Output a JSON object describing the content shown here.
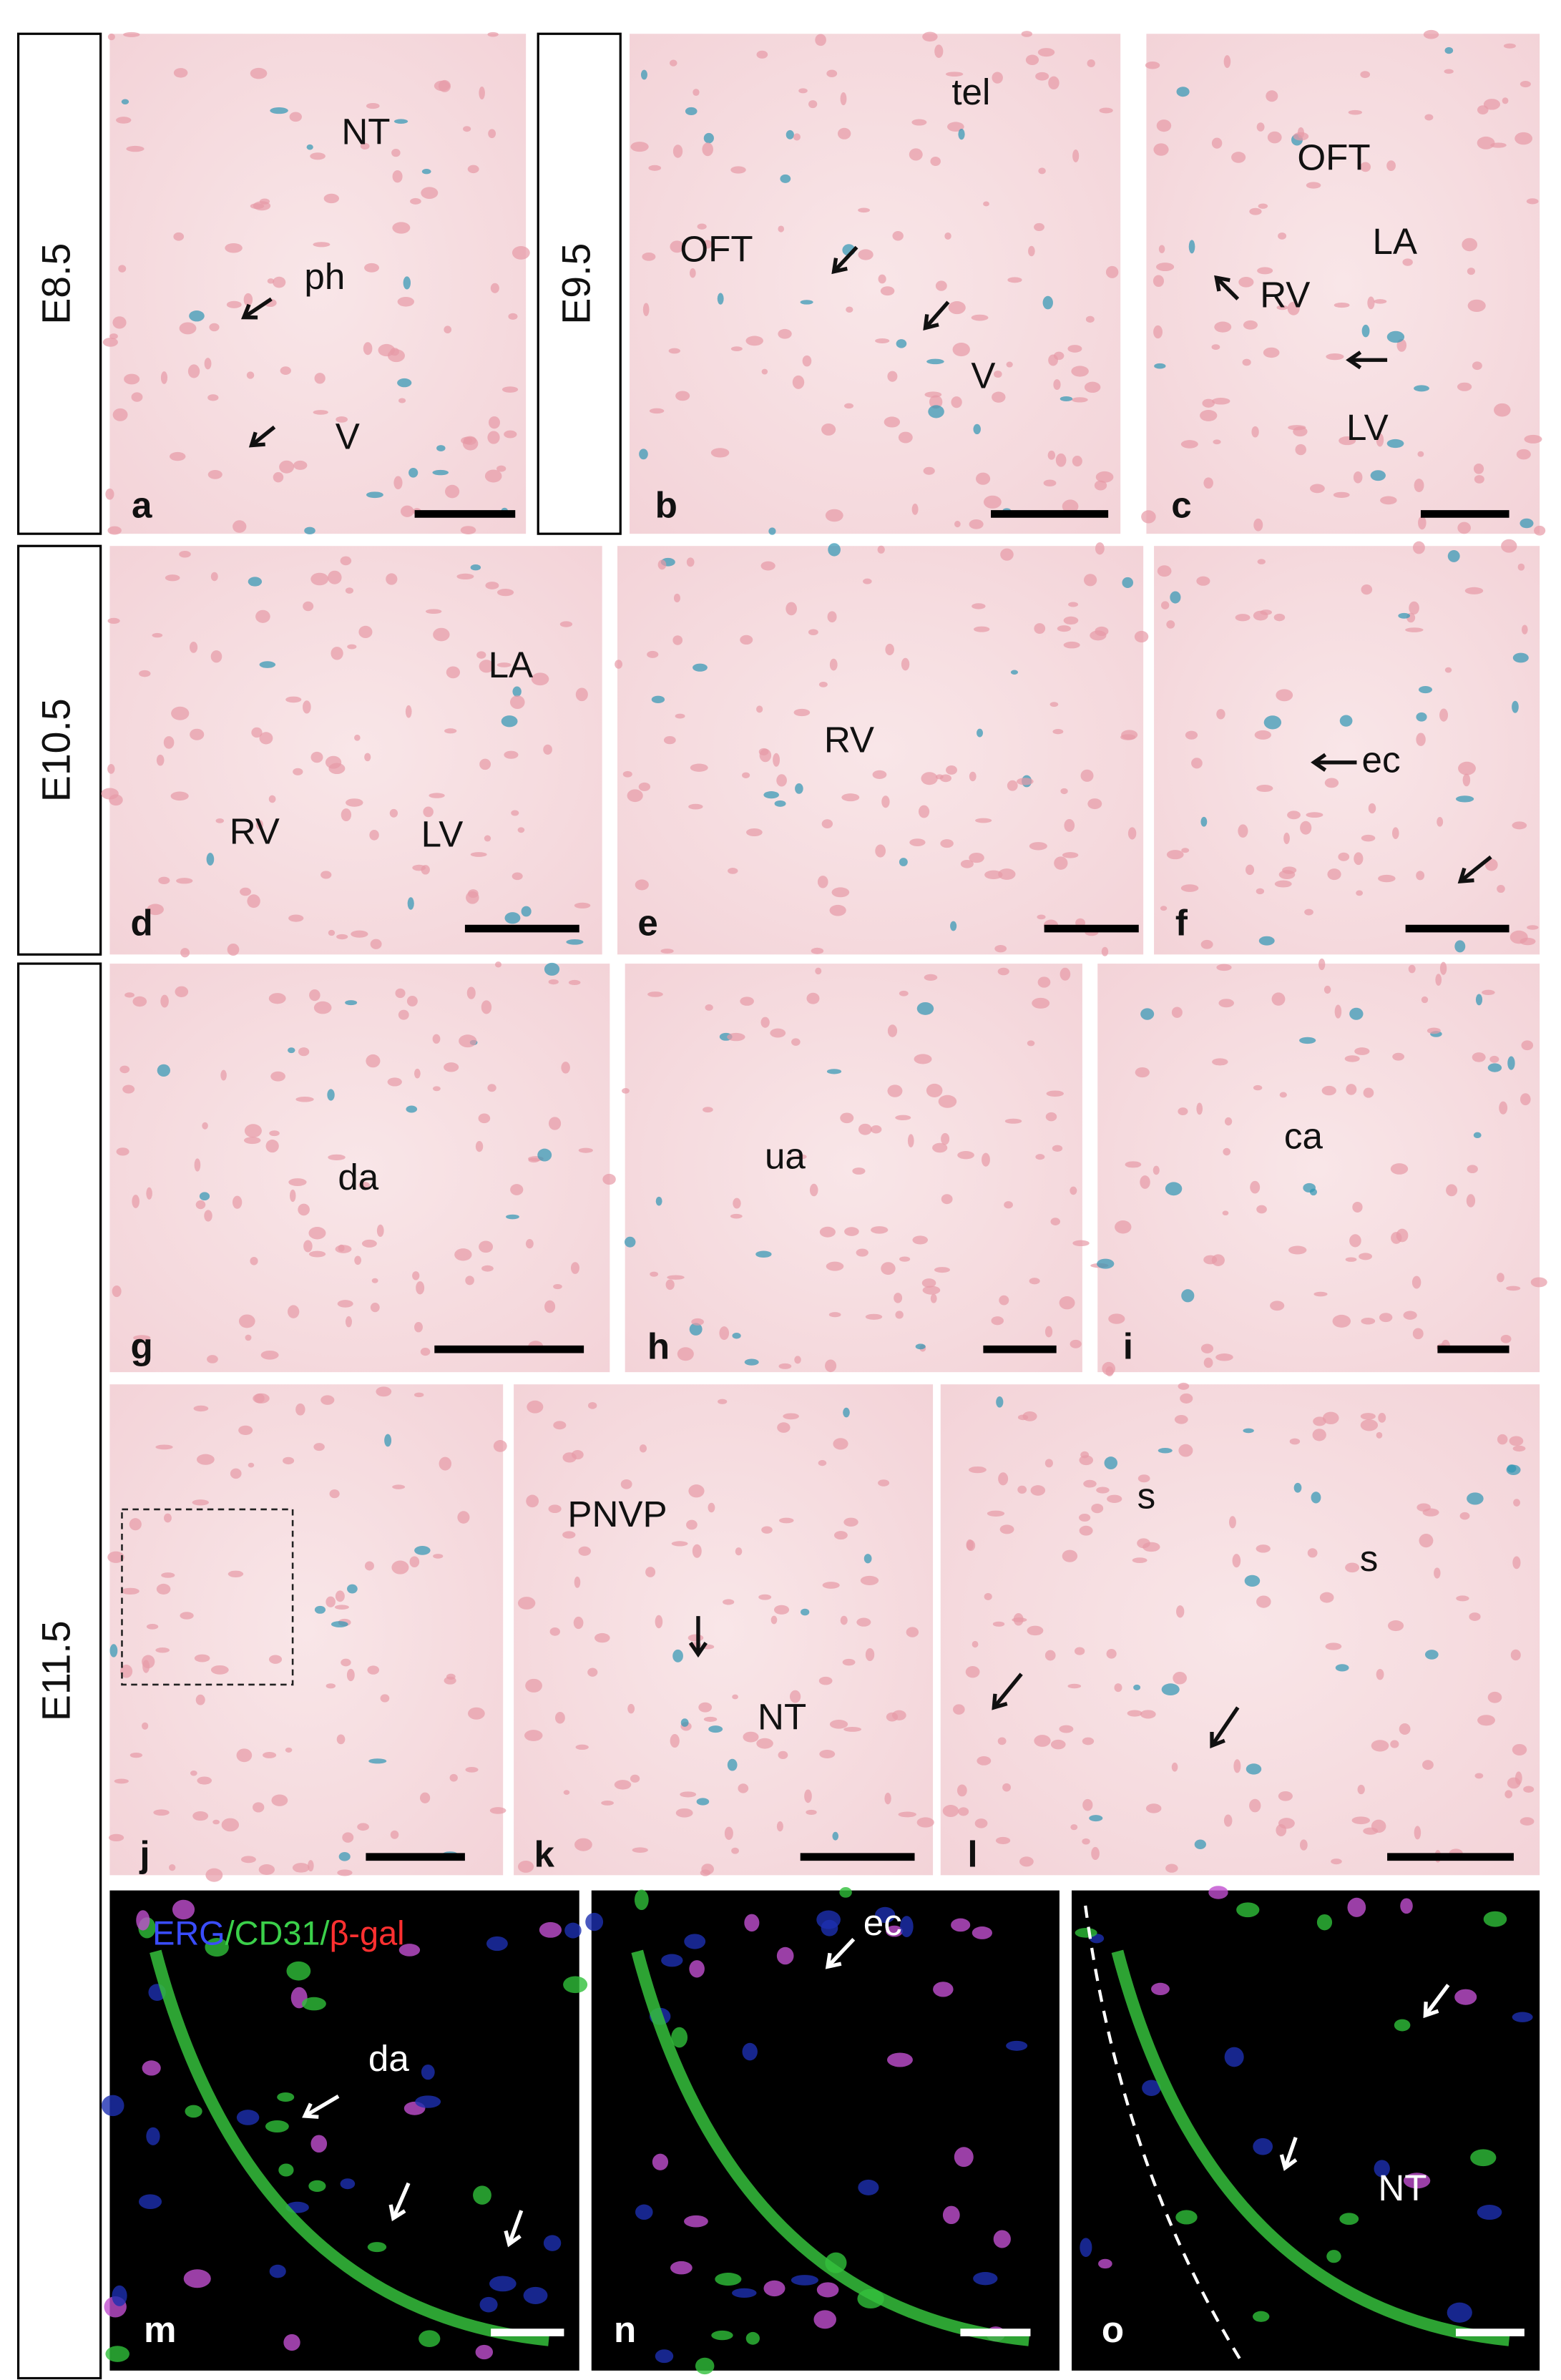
{
  "stages": [
    "E8.5",
    "E9.5",
    "E10.5",
    "E11.5"
  ],
  "legend": [
    "ERG",
    "/CD31/",
    "β-gal"
  ],
  "panels": [
    {
      "letter": "a",
      "labels": [
        "NT",
        "ph",
        "V"
      ]
    },
    {
      "letter": "b",
      "labels": [
        "tel",
        "OFT",
        "V"
      ]
    },
    {
      "letter": "c",
      "labels": [
        "OFT",
        "LA",
        "RV",
        "LV"
      ]
    },
    {
      "letter": "d",
      "labels": [
        "LA",
        "RV",
        "LV"
      ]
    },
    {
      "letter": "e",
      "labels": [
        "RV"
      ]
    },
    {
      "letter": "f",
      "labels": [
        "ec"
      ]
    },
    {
      "letter": "g",
      "labels": [
        "da"
      ]
    },
    {
      "letter": "h",
      "labels": [
        "ua"
      ]
    },
    {
      "letter": "i",
      "labels": [
        "ca"
      ]
    },
    {
      "letter": "j",
      "labels": []
    },
    {
      "letter": "k",
      "labels": [
        "PNVP",
        "NT"
      ]
    },
    {
      "letter": "l",
      "labels": [
        "s",
        "s"
      ]
    },
    {
      "letter": "m",
      "labels": [
        "da"
      ]
    },
    {
      "letter": "n",
      "labels": [
        "ec"
      ]
    },
    {
      "letter": "o",
      "labels": [
        "NT"
      ]
    }
  ]
}
